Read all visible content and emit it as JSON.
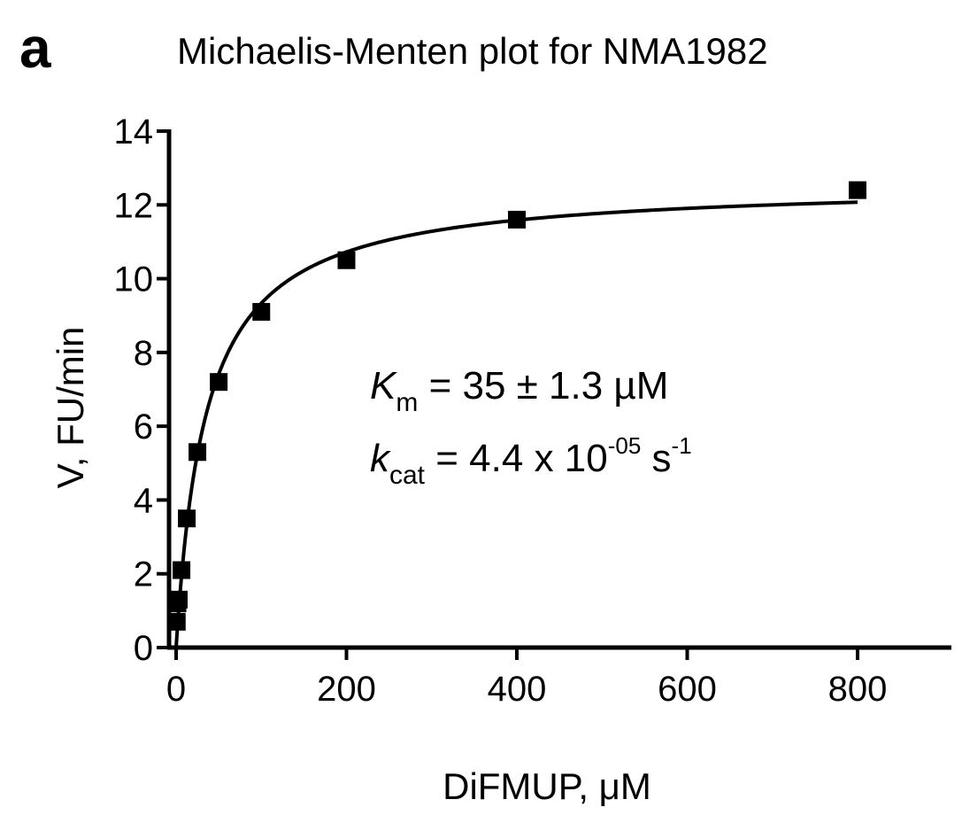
{
  "chart_data": {
    "type": "scatter",
    "panel_label": "a",
    "title": "Michaelis-Menten plot for NMA1982",
    "xlabel": "DiFMUP, μM",
    "ylabel": "V, FU/min",
    "xlim": [
      0,
      800
    ],
    "ylim": [
      0,
      14
    ],
    "x_ticks": [
      0,
      200,
      400,
      600,
      800
    ],
    "y_ticks": [
      0,
      2,
      4,
      6,
      8,
      10,
      12,
      14
    ],
    "grid": false,
    "series": [
      {
        "points": [
          {
            "x": 0.8,
            "y": 0.7
          },
          {
            "x": 1.6,
            "y": 1.2
          },
          {
            "x": 3.1,
            "y": 1.3
          },
          {
            "x": 6.3,
            "y": 2.1
          },
          {
            "x": 12.5,
            "y": 3.5
          },
          {
            "x": 25,
            "y": 5.3
          },
          {
            "x": 50,
            "y": 7.2
          },
          {
            "x": 100,
            "y": 9.1
          },
          {
            "x": 200,
            "y": 10.5
          },
          {
            "x": 400,
            "y": 11.6
          },
          {
            "x": 800,
            "y": 12.4
          }
        ]
      }
    ],
    "fit": {
      "model": "michaelis-menten",
      "Vmax": 12.6,
      "Km": 35
    },
    "annotations": {
      "km": {
        "symbol": "K",
        "sub": "m",
        "text": " = 35 ± 1.3 µM"
      },
      "kcat": {
        "symbol": "k",
        "sub": "cat",
        "text_a": " = 4.4 x 10",
        "exp1": "-05",
        "text_b": " s",
        "exp2": "-1"
      }
    }
  }
}
